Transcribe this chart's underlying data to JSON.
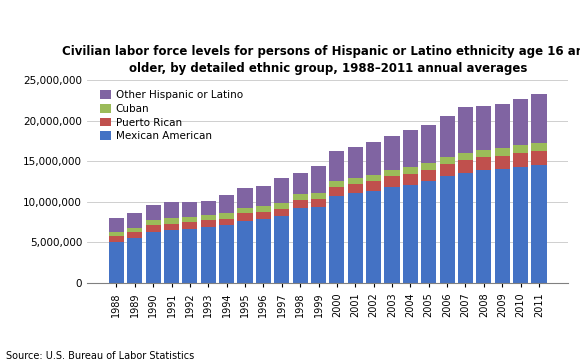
{
  "years": [
    1988,
    1989,
    1990,
    1991,
    1992,
    1993,
    1994,
    1995,
    1996,
    1997,
    1998,
    1999,
    2000,
    2001,
    2002,
    2003,
    2004,
    2005,
    2006,
    2007,
    2008,
    2009,
    2010,
    2011
  ],
  "mexican_american": [
    5100000,
    5550000,
    6350000,
    6550000,
    6700000,
    6900000,
    7100000,
    7700000,
    7900000,
    8250000,
    9300000,
    9400000,
    10700000,
    11100000,
    11350000,
    11850000,
    12100000,
    12550000,
    13150000,
    13550000,
    13900000,
    14000000,
    14300000,
    14500000
  ],
  "puerto_rican": [
    650000,
    700000,
    750000,
    780000,
    800000,
    820000,
    840000,
    880000,
    890000,
    900000,
    980000,
    1000000,
    1100000,
    1150000,
    1200000,
    1300000,
    1380000,
    1420000,
    1500000,
    1550000,
    1600000,
    1650000,
    1680000,
    1720000
  ],
  "cuban": [
    580000,
    590000,
    620000,
    630000,
    640000,
    640000,
    640000,
    680000,
    690000,
    700000,
    700000,
    700000,
    730000,
    740000,
    750000,
    780000,
    820000,
    840000,
    880000,
    920000,
    930000,
    970000,
    990000,
    1020000
  ],
  "other_hispanic": [
    1670000,
    1760000,
    1880000,
    2040000,
    1860000,
    1740000,
    2220000,
    2440000,
    2510000,
    3050000,
    2520000,
    3300000,
    3770000,
    3810000,
    4000000,
    4170000,
    4500000,
    4590000,
    4970000,
    5680000,
    5370000,
    5380000,
    5730000,
    5960000
  ],
  "colors": {
    "mexican_american": "#4472C4",
    "puerto_rican": "#C0504D",
    "cuban": "#9BBB59",
    "other_hispanic": "#8064A2"
  },
  "title_line1": "Civilian labor force levels for persons of Hispanic or Latino ethnicity age 16 and",
  "title_line2": "older, by detailed ethnic group, 1988–2011 annual averages",
  "ylim": [
    0,
    25000000
  ],
  "yticks": [
    0,
    5000000,
    10000000,
    15000000,
    20000000,
    25000000
  ],
  "source_text": "Source: U.S. Bureau of Labor Statistics",
  "legend_labels": [
    "Other Hispanic or Latino",
    "Cuban",
    "Puerto Rican",
    "Mexican American"
  ],
  "background_color": "#ffffff"
}
